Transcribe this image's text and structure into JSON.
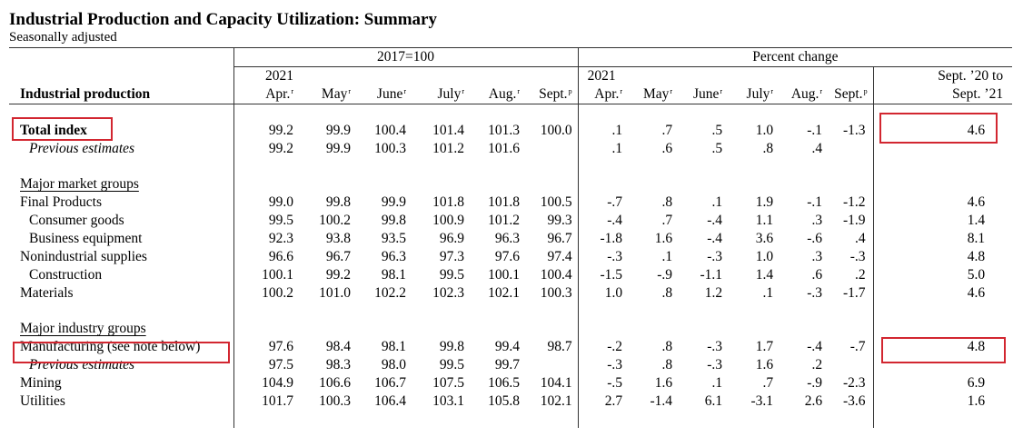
{
  "title": "Industrial Production and Capacity Utilization: Summary",
  "subtitle": "Seasonally adjusted",
  "header": {
    "group_index": "2017=100",
    "group_pct": "Percent change",
    "row_label": "Industrial production",
    "year_index": "2021",
    "year_pct": "2021",
    "yoy_line1": "Sept. ’20 to",
    "yoy_line2": "Sept. ’21",
    "months": [
      {
        "m": "Apr.",
        "s": "r"
      },
      {
        "m": "May",
        "s": "r"
      },
      {
        "m": "June",
        "s": "r"
      },
      {
        "m": "July",
        "s": "r"
      },
      {
        "m": "Aug.",
        "s": "r"
      },
      {
        "m": "Sept.",
        "s": "p"
      }
    ]
  },
  "rows": {
    "total": {
      "label": "Total index",
      "index": [
        "99.2",
        "99.9",
        "100.4",
        "101.4",
        "101.3",
        "100.0"
      ],
      "pct": [
        ".1",
        ".7",
        ".5",
        "1.0",
        "-.1",
        "-1.3"
      ],
      "yoy": "4.6"
    },
    "total_prev": {
      "label": "Previous estimates",
      "index": [
        "99.2",
        "99.9",
        "100.3",
        "101.2",
        "101.6",
        ""
      ],
      "pct": [
        ".1",
        ".6",
        ".5",
        ".8",
        ".4",
        ""
      ],
      "yoy": ""
    },
    "market_header": "Major market groups",
    "final": {
      "label": "Final Products",
      "index": [
        "99.0",
        "99.8",
        "99.9",
        "101.8",
        "101.8",
        "100.5"
      ],
      "pct": [
        "-.7",
        ".8",
        ".1",
        "1.9",
        "-.1",
        "-1.2"
      ],
      "yoy": "4.6"
    },
    "consumer": {
      "label": "Consumer goods",
      "index": [
        "99.5",
        "100.2",
        "99.8",
        "100.9",
        "101.2",
        "99.3"
      ],
      "pct": [
        "-.4",
        ".7",
        "-.4",
        "1.1",
        ".3",
        "-1.9"
      ],
      "yoy": "1.4"
    },
    "business": {
      "label": "Business equipment",
      "index": [
        "92.3",
        "93.8",
        "93.5",
        "96.9",
        "96.3",
        "96.7"
      ],
      "pct": [
        "-1.8",
        "1.6",
        "-.4",
        "3.6",
        "-.6",
        ".4"
      ],
      "yoy": "8.1"
    },
    "nonind": {
      "label": "Nonindustrial supplies",
      "index": [
        "96.6",
        "96.7",
        "96.3",
        "97.3",
        "97.6",
        "97.4"
      ],
      "pct": [
        "-.3",
        ".1",
        "-.3",
        "1.0",
        ".3",
        "-.3"
      ],
      "yoy": "4.8"
    },
    "construction": {
      "label": "Construction",
      "index": [
        "100.1",
        "99.2",
        "98.1",
        "99.5",
        "100.1",
        "100.4"
      ],
      "pct": [
        "-1.5",
        "-.9",
        "-1.1",
        "1.4",
        ".6",
        ".2"
      ],
      "yoy": "5.0"
    },
    "materials": {
      "label": "Materials",
      "index": [
        "100.2",
        "101.0",
        "102.2",
        "102.3",
        "102.1",
        "100.3"
      ],
      "pct": [
        "1.0",
        ".8",
        "1.2",
        ".1",
        "-.3",
        "-1.7"
      ],
      "yoy": "4.6"
    },
    "industry_header": "Major industry groups",
    "manufacturing": {
      "label": "Manufacturing (see note below)",
      "index": [
        "97.6",
        "98.4",
        "98.1",
        "99.8",
        "99.4",
        "98.7"
      ],
      "pct": [
        "-.2",
        ".8",
        "-.3",
        "1.7",
        "-.4",
        "-.7"
      ],
      "yoy": "4.8"
    },
    "manu_prev": {
      "label": "Previous estimates",
      "index": [
        "97.5",
        "98.3",
        "98.0",
        "99.5",
        "99.7",
        ""
      ],
      "pct": [
        "-.3",
        ".8",
        "-.3",
        "1.6",
        ".2",
        ""
      ],
      "yoy": ""
    },
    "mining": {
      "label": "Mining",
      "index": [
        "104.9",
        "106.6",
        "106.7",
        "107.5",
        "106.5",
        "104.1"
      ],
      "pct": [
        "-.5",
        "1.6",
        ".1",
        ".7",
        "-.9",
        "-2.3"
      ],
      "yoy": "6.9"
    },
    "utilities": {
      "label": "Utilities",
      "index": [
        "101.7",
        "100.3",
        "106.4",
        "103.1",
        "105.8",
        "102.1"
      ],
      "pct": [
        "2.7",
        "-1.4",
        "6.1",
        "-3.1",
        "2.6",
        "-3.6"
      ],
      "yoy": "1.6"
    }
  }
}
